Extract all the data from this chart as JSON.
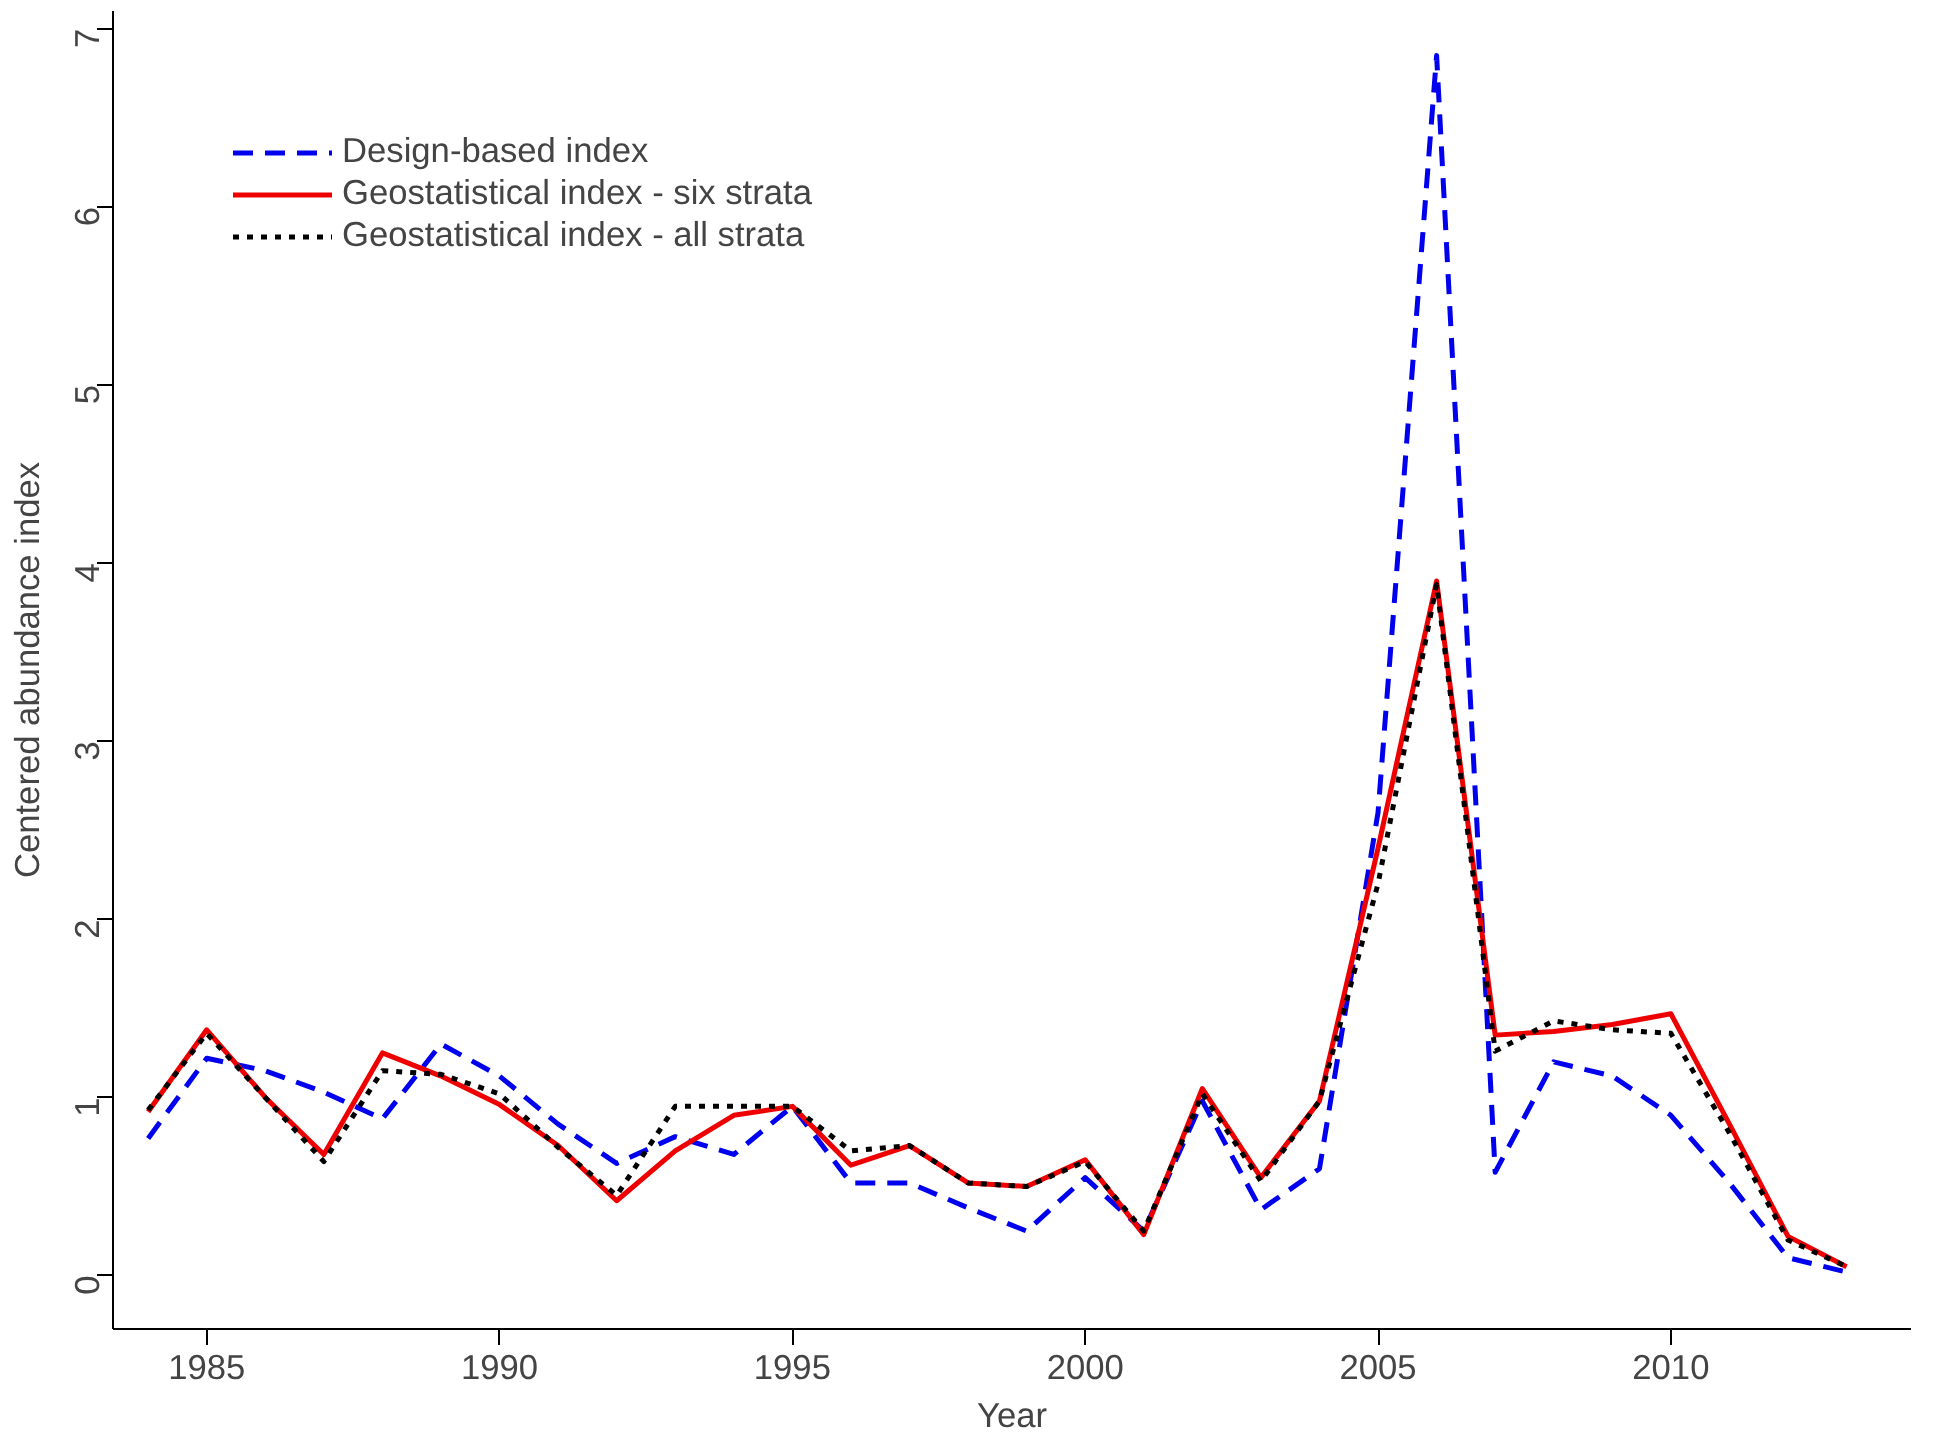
{
  "chart_data": {
    "type": "line",
    "xlabel": "Year",
    "ylabel": "Centered abundance index",
    "x": [
      1984,
      1985,
      1986,
      1987,
      1988,
      1989,
      1990,
      1991,
      1992,
      1993,
      1994,
      1995,
      1996,
      1997,
      1998,
      1999,
      2000,
      2001,
      2002,
      2003,
      2004,
      2005,
      2006,
      2007,
      2008,
      2009,
      2010,
      2011,
      2012,
      2013
    ],
    "xlim": [
      1983.4,
      2014.1
    ],
    "ylim": [
      -0.3,
      7.1
    ],
    "xticks": [
      1985,
      1990,
      1995,
      2000,
      2005,
      2010
    ],
    "yticks": [
      0,
      1,
      2,
      3,
      4,
      5,
      6,
      7
    ],
    "grid": false,
    "legend": "top left",
    "series": [
      {
        "name": "Design-based index",
        "color": "#0000ee",
        "line_style": "dashed",
        "values": [
          0.77,
          1.22,
          1.15,
          1.03,
          0.88,
          1.3,
          1.12,
          0.85,
          0.63,
          0.78,
          0.68,
          0.95,
          0.52,
          0.52,
          0.38,
          0.25,
          0.55,
          0.25,
          0.98,
          0.37,
          0.6,
          2.6,
          6.85,
          0.58,
          1.2,
          1.12,
          0.9,
          0.52,
          0.1,
          0.02
        ]
      },
      {
        "name": "Geostatistical index - six strata",
        "color": "#ee0000",
        "line_style": "solid",
        "values": [
          0.92,
          1.38,
          1.0,
          0.68,
          1.25,
          1.12,
          0.96,
          0.73,
          0.42,
          0.7,
          0.9,
          0.95,
          0.62,
          0.73,
          0.52,
          0.5,
          0.65,
          0.23,
          1.05,
          0.55,
          0.98,
          2.4,
          3.9,
          1.35,
          1.37,
          1.41,
          1.47,
          0.85,
          0.22,
          0.05
        ]
      },
      {
        "name": "Geostatistical index - all strata",
        "color": "#000000",
        "line_style": "dotted",
        "values": [
          0.93,
          1.36,
          1.0,
          0.64,
          1.15,
          1.13,
          1.02,
          0.72,
          0.45,
          0.95,
          0.95,
          0.95,
          0.7,
          0.73,
          0.52,
          0.5,
          0.64,
          0.25,
          1.02,
          0.53,
          0.98,
          2.2,
          3.88,
          1.26,
          1.43,
          1.38,
          1.36,
          0.8,
          0.2,
          0.05
        ]
      }
    ]
  }
}
